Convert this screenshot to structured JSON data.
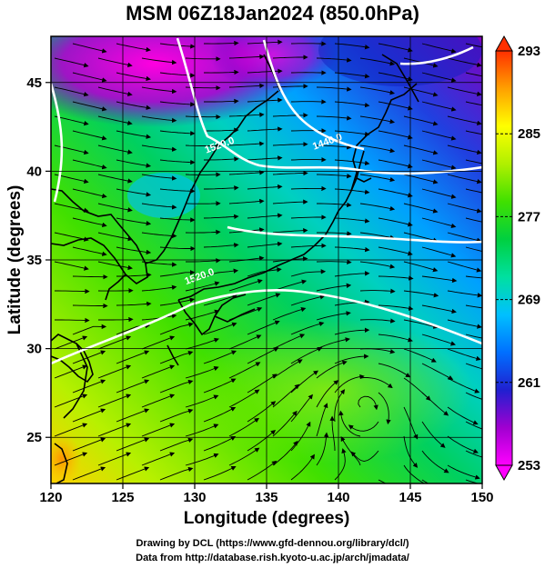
{
  "title": "MSM 06Z18Jan2024 (850.0hPa)",
  "map": {
    "x_axis": {
      "label": "Longitude (degrees)",
      "min": 120,
      "max": 150,
      "ticks": [
        120,
        125,
        130,
        135,
        140,
        145,
        150
      ]
    },
    "y_axis": {
      "label": "Latitude  (degrees)",
      "min": 22.4,
      "max": 47.6,
      "ticks": [
        25,
        30,
        35,
        40,
        45
      ]
    },
    "contour_labels": [
      {
        "text": "1440.0",
        "lon": 139.3,
        "lat": 41.5
      },
      {
        "text": "1520.0",
        "lon": 131.8,
        "lat": 41.3
      },
      {
        "text": "1520.0",
        "lon": 130.4,
        "lat": 33.9
      }
    ]
  },
  "colorbar": {
    "min": 253,
    "max": 293,
    "ticks": [
      253,
      261,
      269,
      277,
      285,
      293
    ],
    "stops": [
      "#ff00ff",
      "#a000d0",
      "#2020d0",
      "#0070ff",
      "#00c0ff",
      "#00e0a0",
      "#00d040",
      "#40e000",
      "#b0f000",
      "#ffff00",
      "#ffa000",
      "#ff3000"
    ]
  },
  "credits": {
    "line1": "Drawing by DCL (https://www.gfd-dennou.org/library/dcl/)",
    "line2": "Data from http://database.rish.kyoto-u.ac.jp/arch/jmadata/"
  }
}
